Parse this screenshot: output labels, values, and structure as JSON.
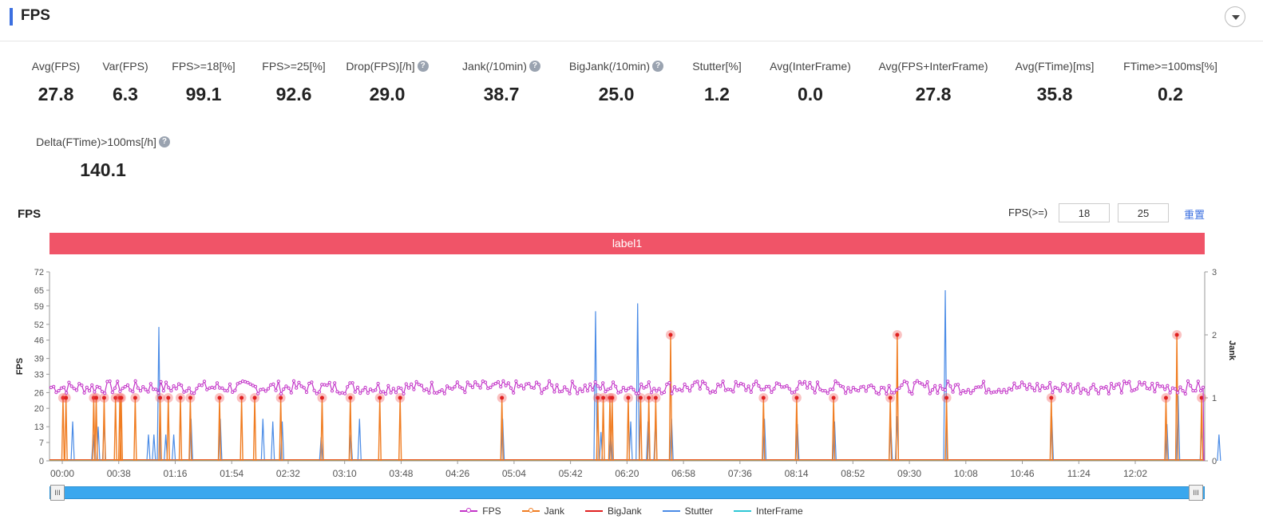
{
  "header": {
    "title": "FPS"
  },
  "metrics": [
    {
      "label": "Avg(FPS)",
      "value": "27.8",
      "help": false
    },
    {
      "label": "Var(FPS)",
      "value": "6.3",
      "help": false
    },
    {
      "label": "FPS>=18[%]",
      "value": "99.1",
      "help": false
    },
    {
      "label": "FPS>=25[%]",
      "value": "92.6",
      "help": false
    },
    {
      "label": "Drop(FPS)[/h]",
      "value": "29.0",
      "help": true
    },
    {
      "label": "Jank(/10min)",
      "value": "38.7",
      "help": true
    },
    {
      "label": "BigJank(/10min)",
      "value": "25.0",
      "help": true
    },
    {
      "label": "Stutter[%]",
      "value": "1.2",
      "help": false
    },
    {
      "label": "Avg(InterFrame)",
      "value": "0.0",
      "help": false
    },
    {
      "label": "Avg(FPS+InterFrame)",
      "value": "27.8",
      "help": false
    },
    {
      "label": "Avg(FTime)[ms]",
      "value": "35.8",
      "help": false
    },
    {
      "label": "FTime>=100ms[%]",
      "value": "0.2",
      "help": false
    },
    {
      "label": "Delta(FTime)>100ms[/h]",
      "value": "140.1",
      "help": true
    }
  ],
  "help_glyph": "?",
  "chart_section": {
    "title": "FPS",
    "threshold_label": "FPS(>=)",
    "threshold_low": "18",
    "threshold_high": "25",
    "reset_label": "重置",
    "label_bar_text": "label1",
    "zoom_handle_glyph": "III"
  },
  "chart_data": {
    "type": "line",
    "title": "",
    "x_ticks": [
      "00:00",
      "00:38",
      "01:16",
      "01:54",
      "02:32",
      "03:10",
      "03:48",
      "04:26",
      "05:04",
      "05:42",
      "06:20",
      "06:58",
      "07:36",
      "08:14",
      "08:52",
      "09:30",
      "10:08",
      "10:46",
      "11:24",
      "12:02"
    ],
    "x_range_seconds": [
      0,
      44100
    ],
    "y_left": {
      "label": "FPS",
      "ticks": [
        0,
        7,
        13,
        20,
        26,
        33,
        39,
        46,
        52,
        59,
        65,
        72
      ],
      "range": [
        0,
        72
      ]
    },
    "y_right": {
      "label": "Jank",
      "ticks": [
        0,
        1,
        2,
        3
      ],
      "range": [
        0,
        3
      ]
    },
    "grid": false,
    "legend_position": "bottom-center",
    "series": [
      {
        "name": "FPS",
        "color": "#c334c8",
        "axis": "left",
        "baseline": 28,
        "variation": 2.5
      },
      {
        "name": "Jank",
        "color": "#f07d22",
        "axis": "right",
        "events": [
          [
            30,
            1
          ],
          [
            150,
            1
          ],
          [
            1270,
            1
          ],
          [
            1370,
            1
          ],
          [
            1690,
            1
          ],
          [
            2150,
            1
          ],
          [
            2325,
            1
          ],
          [
            2380,
            1
          ],
          [
            2945,
            1
          ],
          [
            3950,
            1
          ],
          [
            4280,
            1
          ],
          [
            4770,
            1
          ],
          [
            5170,
            1
          ],
          [
            6350,
            1
          ],
          [
            7240,
            1
          ],
          [
            7770,
            1
          ],
          [
            8820,
            1
          ],
          [
            10490,
            1
          ],
          [
            11630,
            1
          ],
          [
            12820,
            1
          ],
          [
            13640,
            1
          ],
          [
            17750,
            1
          ],
          [
            21620,
            1
          ],
          [
            21840,
            1
          ],
          [
            22110,
            1
          ],
          [
            22200,
            1
          ],
          [
            22850,
            1
          ],
          [
            23350,
            1
          ],
          [
            23680,
            1
          ],
          [
            23960,
            1
          ],
          [
            24560,
            2
          ],
          [
            28310,
            1
          ],
          [
            29650,
            1
          ],
          [
            31140,
            1
          ],
          [
            33430,
            1
          ],
          [
            33710,
            2
          ],
          [
            35700,
            1
          ],
          [
            39930,
            1
          ],
          [
            44560,
            1
          ],
          [
            45000,
            2
          ],
          [
            46000,
            1
          ]
        ]
      },
      {
        "name": "BigJank",
        "color": "#e02020",
        "axis": "right",
        "events": []
      },
      {
        "name": "Stutter",
        "color": "#4a8be6",
        "axis": "left",
        "events": [
          [
            420,
            15
          ],
          [
            1250,
            10
          ],
          [
            1450,
            13
          ],
          [
            1690,
            15
          ],
          [
            3480,
            10
          ],
          [
            3700,
            10
          ],
          [
            3900,
            51
          ],
          [
            4180,
            10
          ],
          [
            4500,
            10
          ],
          [
            5200,
            16
          ],
          [
            6380,
            16
          ],
          [
            8100,
            16
          ],
          [
            8500,
            15
          ],
          [
            8880,
            15
          ],
          [
            10450,
            9
          ],
          [
            11650,
            10
          ],
          [
            12000,
            16
          ],
          [
            17780,
            16
          ],
          [
            21530,
            57
          ],
          [
            21750,
            11
          ],
          [
            22150,
            12
          ],
          [
            22950,
            15
          ],
          [
            23230,
            60
          ],
          [
            23650,
            15
          ],
          [
            23950,
            15
          ],
          [
            24600,
            16
          ],
          [
            28350,
            16
          ],
          [
            29680,
            14
          ],
          [
            31180,
            15
          ],
          [
            33450,
            14
          ],
          [
            33700,
            17
          ],
          [
            35650,
            65
          ],
          [
            39950,
            17
          ],
          [
            44600,
            14
          ],
          [
            45050,
            25
          ],
          [
            46000,
            13
          ],
          [
            46700,
            10
          ]
        ]
      },
      {
        "name": "InterFrame",
        "color": "#2ec7d5",
        "axis": "left",
        "events": []
      }
    ]
  }
}
